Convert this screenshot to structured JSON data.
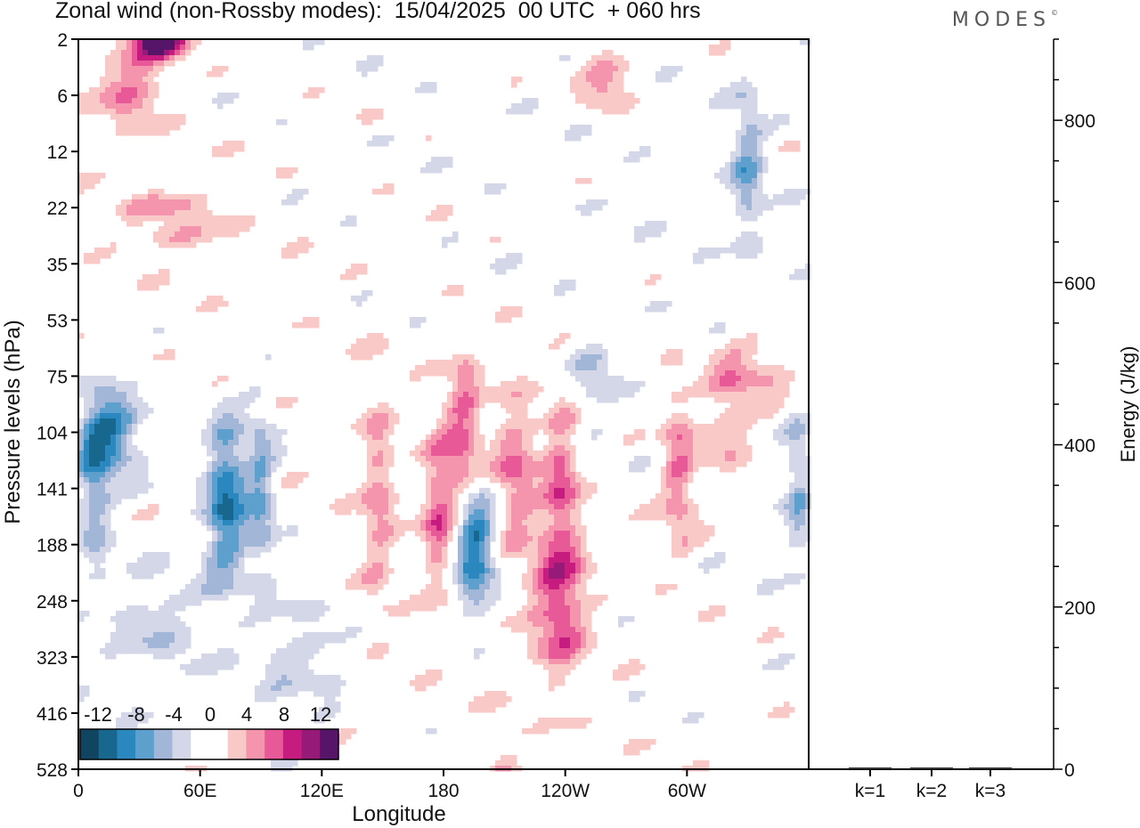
{
  "title": "Zonal wind (non-Rossby modes):  15/04/2025  00 UTC  + 060 hrs",
  "brand": "MODES",
  "brand_mark": "©",
  "colors": {
    "neg": [
      "#0f4560",
      "#17678e",
      "#2b88be",
      "#5ea0cd",
      "#a2b7d8",
      "#d3d7e8"
    ],
    "pos": [
      "#f8c9c6",
      "#f494ad",
      "#e85998",
      "#c71c7f",
      "#961a78",
      "#561568"
    ],
    "zero": "#ffffff"
  },
  "chart_data": {
    "type": "heatmap",
    "xlabel": "Longitude",
    "ylabel": "Pressure levels (hPa)",
    "x_ticks": [
      "0",
      "60E",
      "120E",
      "180",
      "120W",
      "60W"
    ],
    "y_ticks": [
      "2",
      "6",
      "12",
      "22",
      "35",
      "53",
      "75",
      "104",
      "141",
      "188",
      "248",
      "323",
      "416",
      "528"
    ],
    "colorbar_labels": [
      "-12",
      "-8",
      "-4",
      "0",
      "4",
      "8",
      "12"
    ],
    "colorbar_levels": [
      -14,
      -12,
      -10,
      -8,
      -6,
      -4,
      -2,
      2,
      4,
      6,
      8,
      10,
      12,
      14
    ],
    "features": [
      {
        "lon": 40,
        "level": 2,
        "u": 13,
        "dlon": 10,
        "dlev": 0.5
      },
      {
        "lon": 25,
        "level": 5,
        "u": 6,
        "dlon": 12,
        "dlev": 1
      },
      {
        "lon": 260,
        "level": 4,
        "u": 5,
        "dlon": 8,
        "dlev": 1
      },
      {
        "lon": 330,
        "level": 14,
        "u": -6,
        "dlon": 6,
        "dlev": 2
      },
      {
        "lon": 16,
        "level": 104,
        "u": -9,
        "dlon": 10,
        "dlev": 1
      },
      {
        "lon": 8,
        "level": 141,
        "u": -6,
        "dlon": 6,
        "dlev": 2
      },
      {
        "lon": 73,
        "level": 152,
        "u": -10,
        "dlon": 7,
        "dlev": 2
      },
      {
        "lon": 90,
        "level": 141,
        "u": -6,
        "dlon": 5,
        "dlev": 2
      },
      {
        "lon": 195,
        "level": 188,
        "u": -11,
        "dlon": 7,
        "dlev": 1.5
      },
      {
        "lon": 148,
        "level": 150,
        "u": 5,
        "dlon": 6,
        "dlev": 3
      },
      {
        "lon": 178,
        "level": 160,
        "u": 7,
        "dlon": 6,
        "dlev": 2
      },
      {
        "lon": 190,
        "level": 104,
        "u": 7,
        "dlon": 6,
        "dlev": 2
      },
      {
        "lon": 215,
        "level": 130,
        "u": 6,
        "dlon": 8,
        "dlev": 2
      },
      {
        "lon": 237,
        "level": 248,
        "u": 8,
        "dlon": 10,
        "dlev": 2
      },
      {
        "lon": 238,
        "level": 130,
        "u": 6,
        "dlon": 6,
        "dlev": 2
      },
      {
        "lon": 296,
        "level": 130,
        "u": 6,
        "dlon": 6,
        "dlev": 2
      },
      {
        "lon": 320,
        "level": 104,
        "u": 3,
        "dlon": 8,
        "dlev": 1.5
      },
      {
        "lon": 355,
        "level": 141,
        "u": -5,
        "dlon": 5,
        "dlev": 2
      },
      {
        "lon": 40,
        "level": 280,
        "u": -3,
        "dlon": 18,
        "dlev": 1.5
      },
      {
        "lon": 110,
        "level": 323,
        "u": -3,
        "dlon": 15,
        "dlev": 1.5
      },
      {
        "lon": 210,
        "level": 528,
        "u": 3,
        "dlon": 6,
        "dlev": 1.5
      },
      {
        "lon": 255,
        "level": 75,
        "u": -4,
        "dlon": 8,
        "dlev": 1
      },
      {
        "lon": 45,
        "level": 22,
        "u": 4,
        "dlon": 18,
        "dlev": 0.4
      },
      {
        "lon": 45,
        "level": 28,
        "u": 4,
        "dlon": 18,
        "dlev": 0.4
      },
      {
        "lon": 330,
        "level": 75,
        "u": 4,
        "dlon": 14,
        "dlev": 1
      }
    ]
  },
  "energy_panel": {
    "ylabel": "Energy (J/kg)",
    "y_ticks": [
      "0",
      "200",
      "400",
      "600",
      "800"
    ],
    "ylim": [
      0,
      900
    ],
    "categories": [
      "k=1",
      "k=2",
      "k=3"
    ],
    "values": [
      2,
      1.5,
      1
    ]
  }
}
